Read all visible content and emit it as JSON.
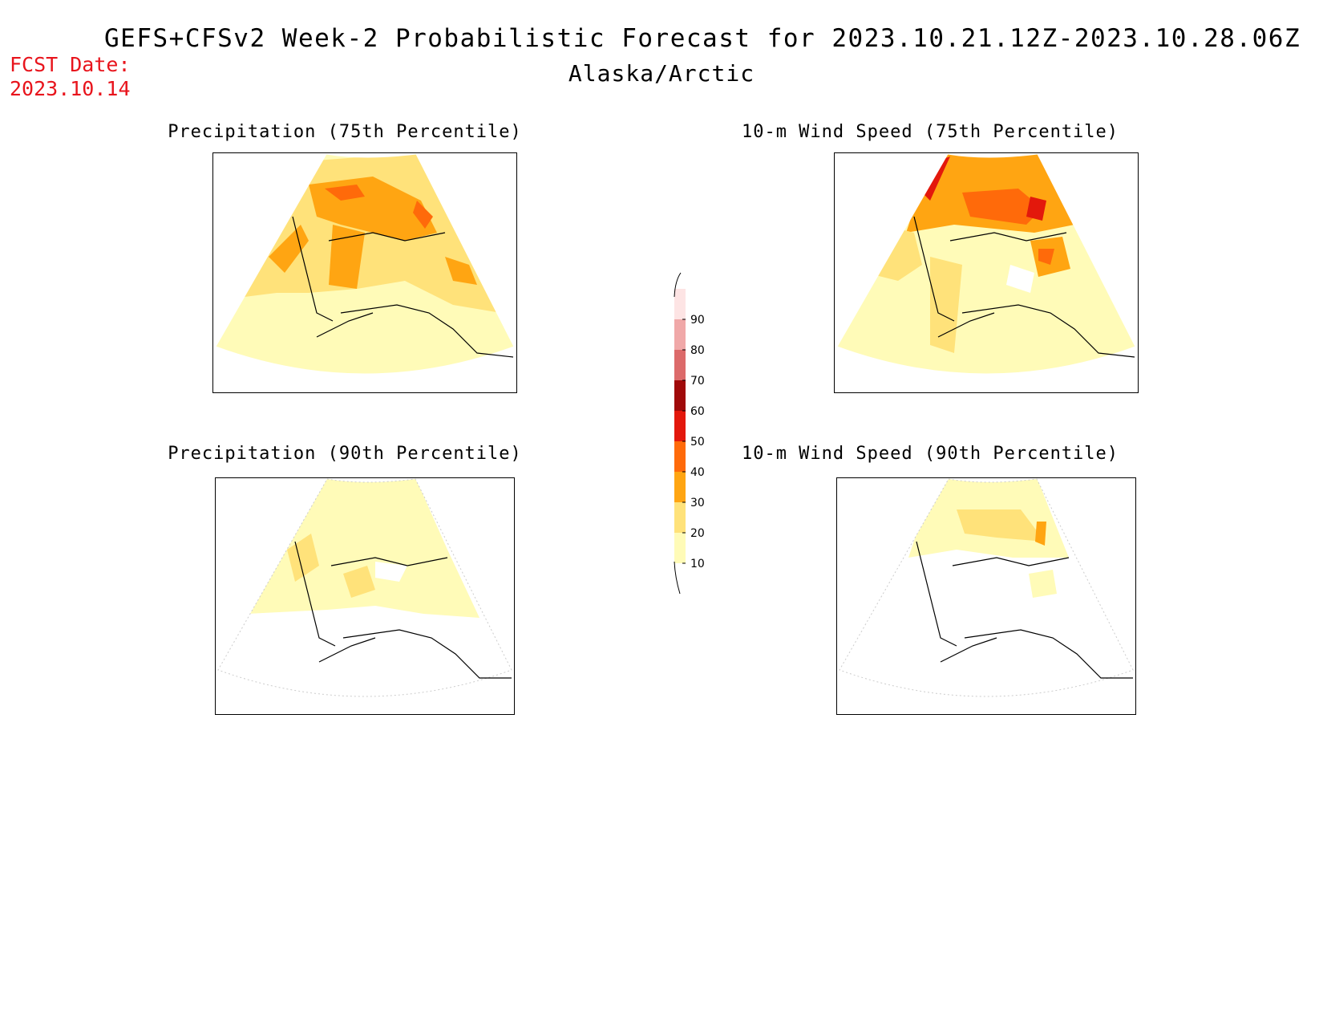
{
  "header": {
    "title": "GEFS+CFSv2 Week-2 Probabilistic Forecast for 2023.10.21.12Z-2023.10.28.06Z",
    "subtitle": "Alaska/Arctic",
    "fcst_date": "FCST Date:\n2023.10.14"
  },
  "panels": [
    {
      "id": "precip75",
      "title": "Precipitation (75th Percentile)"
    },
    {
      "id": "wind75",
      "title": "10-m Wind Speed (75th Percentile)"
    },
    {
      "id": "precip90",
      "title": "Precipitation (90th Percentile)"
    },
    {
      "id": "wind90",
      "title": "10-m Wind Speed (90th Percentile)"
    }
  ],
  "colorbar": {
    "levels": [
      "10",
      "20",
      "30",
      "40",
      "50",
      "60",
      "70",
      "80",
      "90"
    ],
    "colors": [
      "#fffbb8",
      "#ffe27a",
      "#ffa512",
      "#ff6a0a",
      "#e3180c",
      "#a00a0a",
      "#dc6a6a",
      "#f0a8a8",
      "#fde4e4"
    ]
  }
}
